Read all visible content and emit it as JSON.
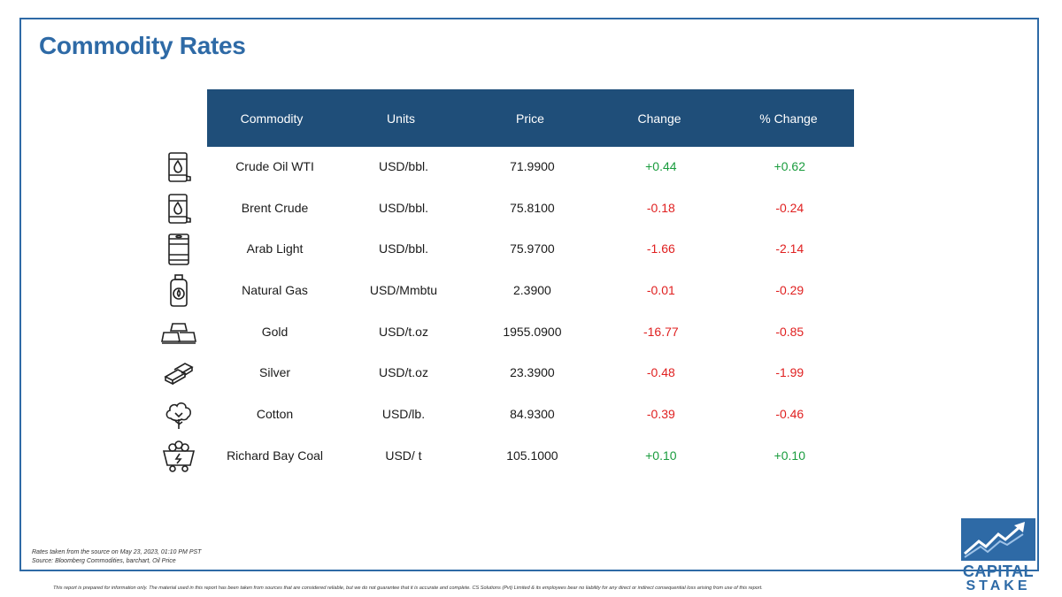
{
  "title": "Commodity Rates",
  "headers": {
    "commodity": "Commodity",
    "units": "Units",
    "price": "Price",
    "change": "Change",
    "pct_change": "% Change"
  },
  "rows": [
    {
      "name": "Crude Oil WTI",
      "units": "USD/bbl.",
      "price": "71.9900",
      "change": "+0.44",
      "pct": "+0.62",
      "icon": "oil-barrel-drop-icon"
    },
    {
      "name": "Brent Crude",
      "units": "USD/bbl.",
      "price": "75.8100",
      "change": "-0.18",
      "pct": "-0.24",
      "icon": "oil-barrel-drop-icon"
    },
    {
      "name": "Arab Light",
      "units": "USD/bbl.",
      "price": "75.9700",
      "change": "-1.66",
      "pct": "-2.14",
      "icon": "barrel-icon"
    },
    {
      "name": "Natural Gas",
      "units": "USD/Mmbtu",
      "price": "2.3900",
      "change": "-0.01",
      "pct": "-0.29",
      "icon": "gas-cylinder-icon"
    },
    {
      "name": "Gold",
      "units": "USD/t.oz",
      "price": "1955.0900",
      "change": "-16.77",
      "pct": "-0.85",
      "icon": "gold-bars-icon"
    },
    {
      "name": "Silver",
      "units": "USD/t.oz",
      "price": "23.3900",
      "change": "-0.48",
      "pct": "-1.99",
      "icon": "silver-bars-icon"
    },
    {
      "name": "Cotton",
      "units": "USD/lb.",
      "price": "84.9300",
      "change": "-0.39",
      "pct": "-0.46",
      "icon": "cotton-icon"
    },
    {
      "name": "Richard Bay Coal",
      "units": "USD/ t",
      "price": "105.1000",
      "change": "+0.10",
      "pct": "+0.10",
      "icon": "coal-cart-icon"
    }
  ],
  "colors": {
    "positive": "#1a9c3e",
    "negative": "#e02020",
    "header_bg": "#1f4e79",
    "accent": "#2e6aa6"
  },
  "footnotes": {
    "rates_taken": "Rates taken from the source on May 23, 2023, 01:10 PM PST",
    "source": "Source: Bloomberg Commodities, barchart, Oil Price"
  },
  "disclaimer": "This report is prepared for information only. The material used in this report has been taken from sources that are considered reliable, but we do not guarantee that it is accurate and complete. CS Solutions (Pvt) Limited & its employees bear no liability for any direct or indirect consequential loss arising from use of this report.",
  "logo": {
    "line1": "CAPITAL",
    "line2": "STAKE"
  }
}
